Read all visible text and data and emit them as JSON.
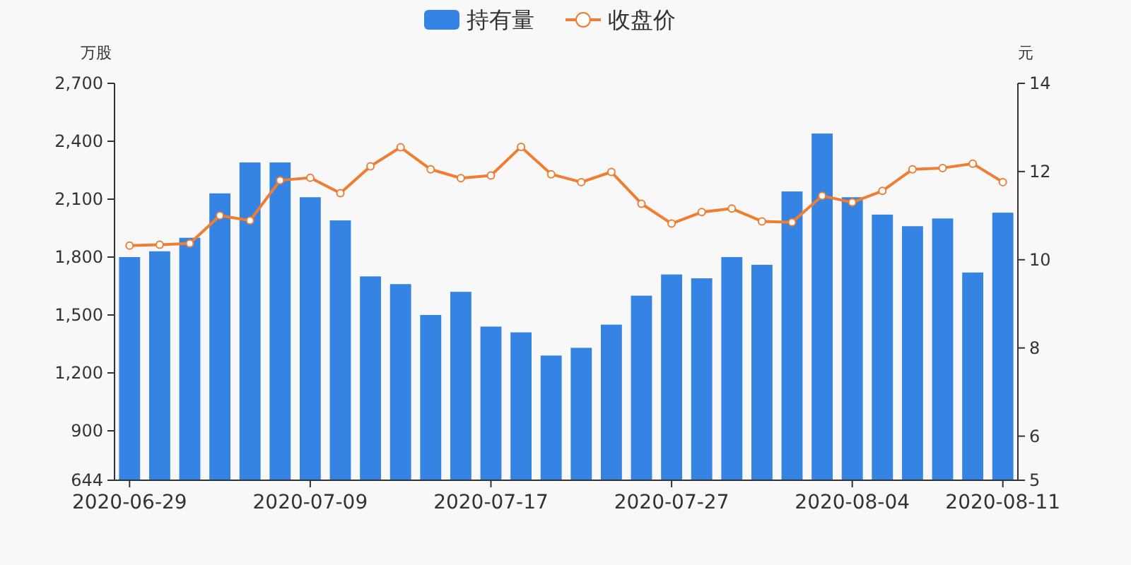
{
  "chart_data": {
    "type": "bar",
    "ylabel": "万股",
    "y2label": "元",
    "categories": [
      "2020-06-29",
      null,
      null,
      null,
      null,
      null,
      "2020-07-09",
      null,
      null,
      null,
      null,
      null,
      "2020-07-17",
      null,
      null,
      null,
      null,
      null,
      "2020-07-27",
      null,
      null,
      null,
      null,
      null,
      "2020-08-04",
      null,
      null,
      null,
      null,
      "2020-08-11"
    ],
    "series": [
      {
        "name": "持有量",
        "color": "#3583e3",
        "values": [
          1800,
          1830,
          1900,
          2130,
          2290,
          2290,
          2110,
          1990,
          1700,
          1660,
          1500,
          1620,
          1440,
          1410,
          1290,
          1330,
          1450,
          1600,
          1710,
          1690,
          1800,
          1760,
          2140,
          2440,
          2110,
          2020,
          1960,
          2000,
          1720,
          2030
        ]
      },
      {
        "name": "收盘价",
        "type": "line",
        "axis": "y2",
        "color": "#ef7d32",
        "marker": "circle",
        "values": [
          10.32,
          10.34,
          10.37,
          11.0,
          10.89,
          11.8,
          11.86,
          11.51,
          12.12,
          12.55,
          12.05,
          11.85,
          11.91,
          12.56,
          11.94,
          11.76,
          11.99,
          11.27,
          10.82,
          11.08,
          11.16,
          10.87,
          10.85,
          11.45,
          11.3,
          11.56,
          12.05,
          12.08,
          12.18,
          11.76
        ]
      }
    ],
    "ylim": [
      644,
      2700
    ],
    "yticks": [
      644,
      900,
      {
        "value": 1200,
        "label": "1,200"
      },
      {
        "value": 1500,
        "label": "1,500"
      },
      {
        "value": 1800,
        "label": "1,800"
      },
      {
        "value": 2100,
        "label": "2,100"
      },
      {
        "value": 2400,
        "label": "2,400"
      },
      {
        "value": 2700,
        "label": "2,700"
      }
    ],
    "y2lim": [
      5,
      14
    ],
    "y2ticks": [
      5,
      6,
      8,
      10,
      12,
      14
    ],
    "legend": "top"
  }
}
